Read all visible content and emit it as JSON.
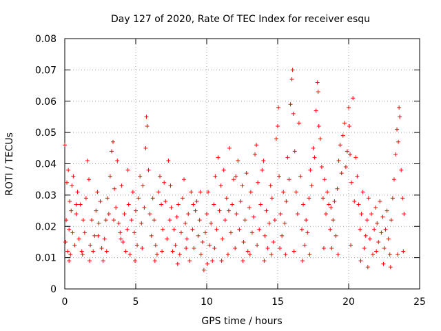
{
  "chart_data": {
    "type": "scatter",
    "title": "Day 127 of 2020, Rate Of TEC Index for receiver esqu",
    "xlabel": "GPS time / hours",
    "ylabel": "ROTI / TECUs",
    "xlim": [
      0,
      25
    ],
    "ylim": [
      0,
      0.08
    ],
    "xticks": [
      0,
      5,
      10,
      15,
      20,
      25
    ],
    "yticks": [
      0,
      0.01,
      0.02,
      0.03,
      0.04,
      0.05,
      0.06,
      0.07,
      0.08
    ],
    "xtick_labels": [
      "0",
      "5",
      "10",
      "15",
      "20",
      "25"
    ],
    "ytick_labels": [
      "0",
      "0.01",
      "0.02",
      "0.03",
      "0.04",
      "0.05",
      "0.06",
      "0.07",
      "0.08"
    ],
    "grid": true,
    "marker": "+",
    "marker_color": "#ff0000",
    "series": [
      {
        "name": "ROTI",
        "points": [
          [
            0.0,
            0.046
          ],
          [
            0.05,
            0.015
          ],
          [
            0.1,
            0.022
          ],
          [
            0.15,
            0.034
          ],
          [
            0.2,
            0.012
          ],
          [
            0.25,
            0.038
          ],
          [
            0.3,
            0.019
          ],
          [
            0.35,
            0.028
          ],
          [
            0.4,
            0.011
          ],
          [
            0.45,
            0.025
          ],
          [
            0.5,
            0.033
          ],
          [
            0.55,
            0.018
          ],
          [
            0.6,
            0.036
          ],
          [
            0.7,
            0.014
          ],
          [
            0.8,
            0.024
          ],
          [
            0.9,
            0.031
          ],
          [
            1.0,
            0.016
          ],
          [
            1.1,
            0.027
          ],
          [
            1.2,
            0.012
          ],
          [
            1.3,
            0.022
          ],
          [
            1.4,
            0.018
          ],
          [
            1.5,
            0.029
          ],
          [
            1.6,
            0.041
          ],
          [
            1.7,
            0.035
          ],
          [
            1.8,
            0.014
          ],
          [
            1.9,
            0.022
          ],
          [
            2.0,
            0.012
          ],
          [
            2.1,
            0.017
          ],
          [
            2.2,
            0.025
          ],
          [
            2.3,
            0.031
          ],
          [
            2.4,
            0.021
          ],
          [
            2.5,
            0.028
          ],
          [
            2.6,
            0.013
          ],
          [
            2.7,
            0.009
          ],
          [
            2.8,
            0.016
          ],
          [
            2.9,
            0.022
          ],
          [
            3.0,
            0.029
          ],
          [
            3.1,
            0.024
          ],
          [
            3.2,
            0.036
          ],
          [
            3.3,
            0.044
          ],
          [
            3.4,
            0.047
          ],
          [
            3.5,
            0.032
          ],
          [
            3.6,
            0.026
          ],
          [
            3.7,
            0.041
          ],
          [
            3.8,
            0.021
          ],
          [
            3.9,
            0.018
          ],
          [
            4.0,
            0.033
          ],
          [
            4.1,
            0.015
          ],
          [
            4.2,
            0.024
          ],
          [
            4.3,
            0.012
          ],
          [
            4.4,
            0.019
          ],
          [
            4.5,
            0.027
          ],
          [
            4.6,
            0.011
          ],
          [
            4.7,
            0.022
          ],
          [
            4.8,
            0.031
          ],
          [
            4.9,
            0.018
          ],
          [
            5.0,
            0.025
          ],
          [
            5.1,
            0.014
          ],
          [
            5.2,
            0.029
          ],
          [
            5.3,
            0.036
          ],
          [
            5.4,
            0.021
          ],
          [
            5.5,
            0.033
          ],
          [
            5.6,
            0.026
          ],
          [
            5.7,
            0.045
          ],
          [
            5.75,
            0.055
          ],
          [
            5.8,
            0.052
          ],
          [
            5.9,
            0.038
          ],
          [
            6.0,
            0.024
          ],
          [
            6.1,
            0.017
          ],
          [
            6.2,
            0.029
          ],
          [
            6.3,
            0.022
          ],
          [
            6.4,
            0.014
          ],
          [
            6.5,
            0.011
          ],
          [
            6.6,
            0.031
          ],
          [
            6.7,
            0.036
          ],
          [
            6.8,
            0.027
          ],
          [
            6.9,
            0.019
          ],
          [
            7.0,
            0.034
          ],
          [
            7.1,
            0.028
          ],
          [
            7.2,
            0.016
          ],
          [
            7.3,
            0.041
          ],
          [
            7.4,
            0.022
          ],
          [
            7.5,
            0.026
          ],
          [
            7.6,
            0.012
          ],
          [
            7.7,
            0.019
          ],
          [
            7.8,
            0.014
          ],
          [
            7.9,
            0.023
          ],
          [
            8.0,
            0.027
          ],
          [
            8.1,
            0.011
          ],
          [
            8.2,
            0.018
          ],
          [
            8.3,
            0.029
          ],
          [
            8.4,
            0.035
          ],
          [
            8.5,
            0.021
          ],
          [
            8.6,
            0.016
          ],
          [
            8.7,
            0.024
          ],
          [
            8.8,
            0.009
          ],
          [
            8.9,
            0.031
          ],
          [
            9.0,
            0.019
          ],
          [
            9.1,
            0.013
          ],
          [
            9.2,
            0.025
          ],
          [
            9.3,
            0.028
          ],
          [
            9.4,
            0.017
          ],
          [
            9.5,
            0.022
          ],
          [
            9.6,
            0.011
          ],
          [
            9.7,
            0.015
          ],
          [
            9.8,
            0.006
          ],
          [
            9.9,
            0.018
          ],
          [
            10.0,
            0.024
          ],
          [
            10.1,
            0.031
          ],
          [
            10.2,
            0.014
          ],
          [
            10.3,
            0.021
          ],
          [
            10.4,
            0.009
          ],
          [
            10.5,
            0.027
          ],
          [
            10.6,
            0.036
          ],
          [
            10.7,
            0.019
          ],
          [
            10.8,
            0.042
          ],
          [
            10.9,
            0.025
          ],
          [
            11.0,
            0.033
          ],
          [
            11.1,
            0.016
          ],
          [
            11.2,
            0.038
          ],
          [
            11.3,
            0.022
          ],
          [
            11.4,
            0.029
          ],
          [
            11.5,
            0.011
          ],
          [
            11.6,
            0.045
          ],
          [
            11.7,
            0.018
          ],
          [
            11.8,
            0.027
          ],
          [
            11.9,
            0.035
          ],
          [
            12.0,
            0.013
          ],
          [
            12.1,
            0.024
          ],
          [
            12.2,
            0.041
          ],
          [
            12.3,
            0.019
          ],
          [
            12.4,
            0.028
          ],
          [
            12.5,
            0.033
          ],
          [
            12.6,
            0.015
          ],
          [
            12.7,
            0.022
          ],
          [
            12.8,
            0.037
          ],
          [
            12.9,
            0.012
          ],
          [
            13.0,
            0.026
          ],
          [
            13.1,
            0.031
          ],
          [
            13.2,
            0.018
          ],
          [
            13.3,
            0.023
          ],
          [
            13.4,
            0.043
          ],
          [
            13.5,
            0.046
          ],
          [
            13.6,
            0.034
          ],
          [
            13.7,
            0.019
          ],
          [
            13.8,
            0.027
          ],
          [
            13.9,
            0.038
          ],
          [
            14.0,
            0.041
          ],
          [
            14.1,
            0.017
          ],
          [
            14.2,
            0.025
          ],
          [
            14.3,
            0.013
          ],
          [
            14.4,
            0.021
          ],
          [
            14.5,
            0.033
          ],
          [
            14.6,
            0.029
          ],
          [
            14.7,
            0.015
          ],
          [
            14.8,
            0.022
          ],
          [
            14.9,
            0.048
          ],
          [
            15.0,
            0.052
          ],
          [
            15.05,
            0.058
          ],
          [
            15.1,
            0.036
          ],
          [
            15.2,
            0.024
          ],
          [
            15.3,
            0.017
          ],
          [
            15.4,
            0.031
          ],
          [
            15.5,
            0.021
          ],
          [
            15.6,
            0.028
          ],
          [
            15.7,
            0.042
          ],
          [
            15.8,
            0.035
          ],
          [
            15.9,
            0.059
          ],
          [
            16.0,
            0.067
          ],
          [
            16.05,
            0.07
          ],
          [
            16.1,
            0.056
          ],
          [
            16.2,
            0.044
          ],
          [
            16.3,
            0.031
          ],
          [
            16.4,
            0.024
          ],
          [
            16.5,
            0.053
          ],
          [
            16.6,
            0.036
          ],
          [
            16.7,
            0.019
          ],
          [
            16.8,
            0.027
          ],
          [
            16.9,
            0.014
          ],
          [
            17.0,
            0.022
          ],
          [
            17.1,
            0.018
          ],
          [
            17.2,
            0.029
          ],
          [
            17.3,
            0.038
          ],
          [
            17.4,
            0.033
          ],
          [
            17.5,
            0.045
          ],
          [
            17.6,
            0.042
          ],
          [
            17.7,
            0.057
          ],
          [
            17.8,
            0.066
          ],
          [
            17.85,
            0.063
          ],
          [
            17.9,
            0.052
          ],
          [
            18.0,
            0.048
          ],
          [
            18.1,
            0.039
          ],
          [
            18.2,
            0.029
          ],
          [
            18.3,
            0.035
          ],
          [
            18.4,
            0.024
          ],
          [
            18.5,
            0.031
          ],
          [
            18.6,
            0.027
          ],
          [
            18.7,
            0.019
          ],
          [
            18.8,
            0.013
          ],
          [
            18.9,
            0.022
          ],
          [
            19.0,
            0.028
          ],
          [
            19.1,
            0.017
          ],
          [
            19.2,
            0.032
          ],
          [
            19.3,
            0.041
          ],
          [
            19.4,
            0.046
          ],
          [
            19.5,
            0.037
          ],
          [
            19.6,
            0.049
          ],
          [
            19.7,
            0.053
          ],
          [
            19.8,
            0.039
          ],
          [
            19.9,
            0.044
          ],
          [
            20.0,
            0.058
          ],
          [
            20.05,
            0.052
          ],
          [
            20.1,
            0.043
          ],
          [
            20.2,
            0.034
          ],
          [
            20.3,
            0.061
          ],
          [
            20.4,
            0.028
          ],
          [
            20.5,
            0.042
          ],
          [
            20.6,
            0.036
          ],
          [
            20.7,
            0.027
          ],
          [
            20.8,
            0.019
          ],
          [
            20.9,
            0.024
          ],
          [
            21.0,
            0.031
          ],
          [
            21.1,
            0.013
          ],
          [
            21.2,
            0.017
          ],
          [
            21.3,
            0.022
          ],
          [
            21.4,
            0.029
          ],
          [
            21.5,
            0.016
          ],
          [
            21.6,
            0.024
          ],
          [
            21.7,
            0.011
          ],
          [
            21.8,
            0.019
          ],
          [
            21.9,
            0.026
          ],
          [
            22.0,
            0.021
          ],
          [
            22.1,
            0.015
          ],
          [
            22.2,
            0.028
          ],
          [
            22.3,
            0.018
          ],
          [
            22.4,
            0.023
          ],
          [
            22.5,
            0.013
          ],
          [
            22.6,
            0.019
          ],
          [
            22.7,
            0.025
          ],
          [
            22.8,
            0.016
          ],
          [
            22.9,
            0.011
          ],
          [
            23.0,
            0.022
          ],
          [
            23.1,
            0.029
          ],
          [
            23.2,
            0.035
          ],
          [
            23.3,
            0.043
          ],
          [
            23.4,
            0.051
          ],
          [
            23.5,
            0.047
          ],
          [
            23.55,
            0.058
          ],
          [
            23.6,
            0.055
          ],
          [
            23.7,
            0.038
          ],
          [
            23.8,
            0.029
          ],
          [
            23.9,
            0.024
          ],
          [
            0.3,
            0.009
          ],
          [
            0.8,
            0.027
          ],
          [
            1.25,
            0.011
          ],
          [
            1.75,
            0.009
          ],
          [
            2.35,
            0.017
          ],
          [
            2.95,
            0.012
          ],
          [
            3.45,
            0.022
          ],
          [
            3.95,
            0.016
          ],
          [
            4.45,
            0.038
          ],
          [
            4.95,
            0.009
          ],
          [
            5.45,
            0.013
          ],
          [
            6.35,
            0.009
          ],
          [
            6.85,
            0.012
          ],
          [
            7.45,
            0.033
          ],
          [
            7.95,
            0.008
          ],
          [
            8.55,
            0.013
          ],
          [
            9.05,
            0.027
          ],
          [
            9.55,
            0.031
          ],
          [
            10.05,
            0.008
          ],
          [
            10.55,
            0.013
          ],
          [
            11.05,
            0.009
          ],
          [
            11.55,
            0.025
          ],
          [
            12.05,
            0.036
          ],
          [
            12.55,
            0.009
          ],
          [
            13.05,
            0.011
          ],
          [
            13.55,
            0.014
          ],
          [
            14.05,
            0.009
          ],
          [
            14.55,
            0.011
          ],
          [
            15.15,
            0.013
          ],
          [
            15.55,
            0.011
          ],
          [
            16.15,
            0.012
          ],
          [
            16.75,
            0.009
          ],
          [
            17.25,
            0.011
          ],
          [
            18.25,
            0.013
          ],
          [
            18.75,
            0.026
          ],
          [
            19.25,
            0.011
          ],
          [
            20.15,
            0.014
          ],
          [
            20.85,
            0.009
          ],
          [
            21.35,
            0.007
          ],
          [
            21.95,
            0.012
          ],
          [
            22.45,
            0.008
          ],
          [
            22.95,
            0.007
          ],
          [
            23.45,
            0.011
          ],
          [
            23.85,
            0.012
          ]
        ]
      }
    ]
  }
}
